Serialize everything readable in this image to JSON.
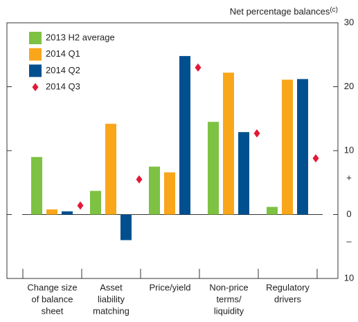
{
  "chart_data": {
    "type": "bar",
    "y_label": "Net percentage balances",
    "y_label_note": "(c)",
    "categories": [
      [
        "Change size",
        "of balance",
        "sheet"
      ],
      [
        "Asset",
        "liability",
        "matching"
      ],
      [
        "Price/yield"
      ],
      [
        "Non-price",
        "terms/",
        "liquidity"
      ],
      [
        "Regulatory",
        "drivers"
      ]
    ],
    "series": [
      {
        "name": "2013 H2 average",
        "color": "#7dc242",
        "marker": "bar",
        "values": [
          9.0,
          3.7,
          7.5,
          14.5,
          1.2
        ]
      },
      {
        "name": "2014 Q1",
        "color": "#f9a61a",
        "marker": "bar",
        "values": [
          0.8,
          14.2,
          6.6,
          22.2,
          21.1
        ]
      },
      {
        "name": "2014 Q2",
        "color": "#00508f",
        "marker": "bar",
        "values": [
          0.5,
          -4.0,
          24.8,
          12.9,
          21.2
        ]
      },
      {
        "name": "2014 Q3",
        "color": "#e31937",
        "marker": "diamond",
        "values": [
          1.4,
          5.5,
          23.0,
          12.7,
          8.8
        ]
      }
    ],
    "ylim": [
      -10,
      30
    ],
    "yticks": [
      30,
      20,
      10,
      0,
      {
        "value": -10,
        "label": "10"
      }
    ],
    "sign_labels": [
      "+",
      "–"
    ],
    "legend": "top-left",
    "grid": false
  }
}
